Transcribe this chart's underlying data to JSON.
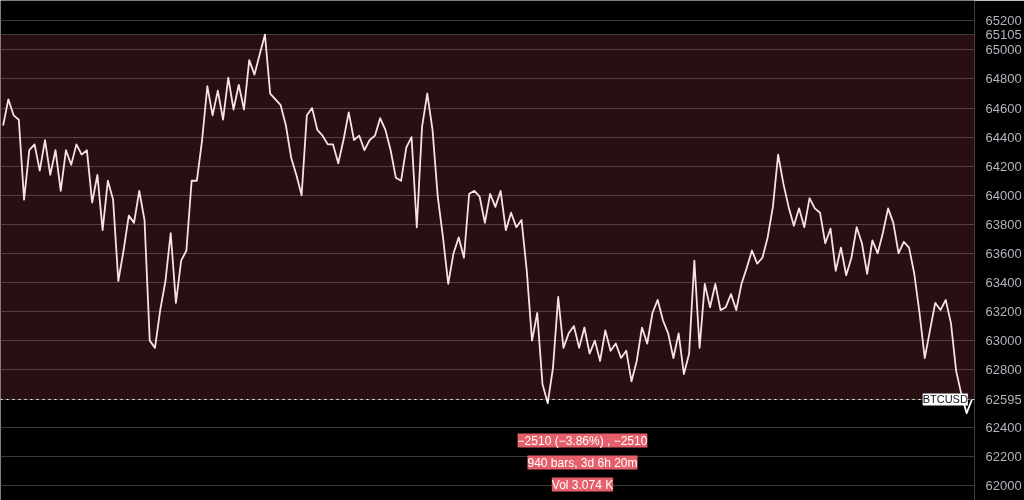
{
  "chart_data": {
    "type": "line",
    "categories": [
      null,
      null,
      null,
      null,
      null,
      null,
      null,
      null,
      null,
      null,
      null,
      null,
      null,
      null,
      null,
      null,
      null,
      null,
      null,
      null,
      null,
      null,
      null,
      null,
      null,
      null,
      null,
      null,
      null,
      null,
      null,
      null,
      null,
      null,
      null,
      null,
      null,
      null,
      null,
      null,
      null,
      null,
      null,
      null,
      null,
      null,
      null,
      null,
      null,
      null,
      null,
      null,
      null,
      null,
      null,
      null,
      null,
      null,
      null,
      null,
      null,
      null,
      null,
      null,
      null,
      null,
      null,
      null,
      null,
      null,
      null,
      null,
      null,
      null,
      null,
      null,
      null,
      null,
      null,
      null,
      null,
      null,
      null,
      null,
      null,
      null,
      null,
      null,
      null,
      null,
      null,
      null,
      null,
      null,
      null,
      null,
      null,
      null,
      null,
      null,
      null,
      null,
      null,
      null,
      null,
      null,
      null,
      null,
      null,
      null,
      null,
      null,
      null,
      null,
      null,
      null,
      null,
      null,
      null,
      null,
      null,
      null,
      null,
      null,
      null,
      null,
      null,
      null,
      null,
      null,
      null,
      null,
      null,
      null,
      null,
      null,
      null,
      null,
      null,
      null,
      null,
      null,
      null,
      null,
      null,
      null,
      null,
      null,
      null,
      null,
      null,
      null,
      null,
      null,
      null,
      null,
      null,
      null,
      null,
      null,
      null,
      null,
      null,
      null,
      null,
      null,
      null,
      null,
      null,
      null,
      null,
      null,
      null,
      null,
      null,
      null,
      null,
      null,
      null,
      null,
      null,
      null,
      null,
      null,
      null,
      null
    ],
    "series": [
      {
        "color": "#ffffff",
        "values": [
          64480,
          64660,
          64550,
          64520,
          63970,
          64310,
          64350,
          64170,
          64380,
          64140,
          64310,
          64030,
          64310,
          64210,
          64350,
          64280,
          64310,
          63950,
          64140,
          63760,
          64100,
          63970,
          63410,
          63620,
          63860,
          63810,
          64030,
          63830,
          63000,
          62950,
          63210,
          63410,
          63740,
          63260,
          63550,
          63620,
          64100,
          64100,
          64380,
          64750,
          64550,
          64720,
          64520,
          64810,
          64590,
          64760,
          64590,
          64930,
          64830,
          64970,
          65105,
          64700,
          64660,
          64620,
          64480,
          64260,
          64140,
          64000,
          64550,
          64600,
          64450,
          64410,
          64350,
          64350,
          64220,
          64380,
          64570,
          64380,
          64410,
          64310,
          64380,
          64410,
          64530,
          64450,
          64310,
          64120,
          64100,
          64330,
          64400,
          63780,
          64470,
          64700,
          64450,
          63990,
          63710,
          63390,
          63600,
          63710,
          63570,
          64010,
          64030,
          63990,
          63810,
          64010,
          63920,
          64030,
          63760,
          63880,
          63780,
          63830,
          63480,
          63000,
          63190,
          62700,
          62570,
          62810,
          63300,
          62950,
          63050,
          63100,
          62950,
          63090,
          62910,
          63000,
          62860,
          63070,
          62930,
          62980,
          62880,
          62930,
          62720,
          62860,
          63090,
          62980,
          63190,
          63280,
          63140,
          63050,
          62880,
          63050,
          62770,
          62910,
          63550,
          62950,
          63390,
          63230,
          63390,
          63210,
          63230,
          63320,
          63210,
          63390,
          63500,
          63620,
          63530,
          63570,
          63710,
          63920,
          64280,
          64080,
          63920,
          63790,
          63910,
          63780,
          63980,
          63910,
          63880,
          63670,
          63770,
          63480,
          63640,
          63450,
          63570,
          63780,
          63670,
          63460,
          63690,
          63600,
          63740,
          63910,
          63810,
          63600,
          63680,
          63640,
          63460,
          63190,
          62880,
          63070,
          63260,
          63210,
          63280,
          63120,
          62790,
          62630,
          62500,
          62595
        ]
      }
    ],
    "ylim": [
      61900,
      65340
    ],
    "yticks": [
      62000,
      62200,
      62400,
      62800,
      63000,
      63200,
      63400,
      63600,
      63800,
      64000,
      64200,
      64400,
      64600,
      64800,
      65000,
      65200,
      {
        "value": 65105,
        "label": "65105"
      },
      {
        "value": 62595,
        "label": "62595"
      }
    ],
    "tick_labels": "y",
    "grid": "y",
    "line_style": "solid",
    "bands": [
      {
        "axis": "y",
        "from": 62595,
        "to": 65105,
        "color": "#e05560"
      }
    ],
    "ref_lines": [
      {
        "axis": "y",
        "value": 62595,
        "label": "BTCUSD",
        "color": "#ffffff",
        "line_style": "dotted"
      }
    ],
    "annotations": [
      "−2510 (−3.86%) , −2510",
      "940 bars, 3d 6h 20m",
      "Vol 3.074 K"
    ]
  }
}
